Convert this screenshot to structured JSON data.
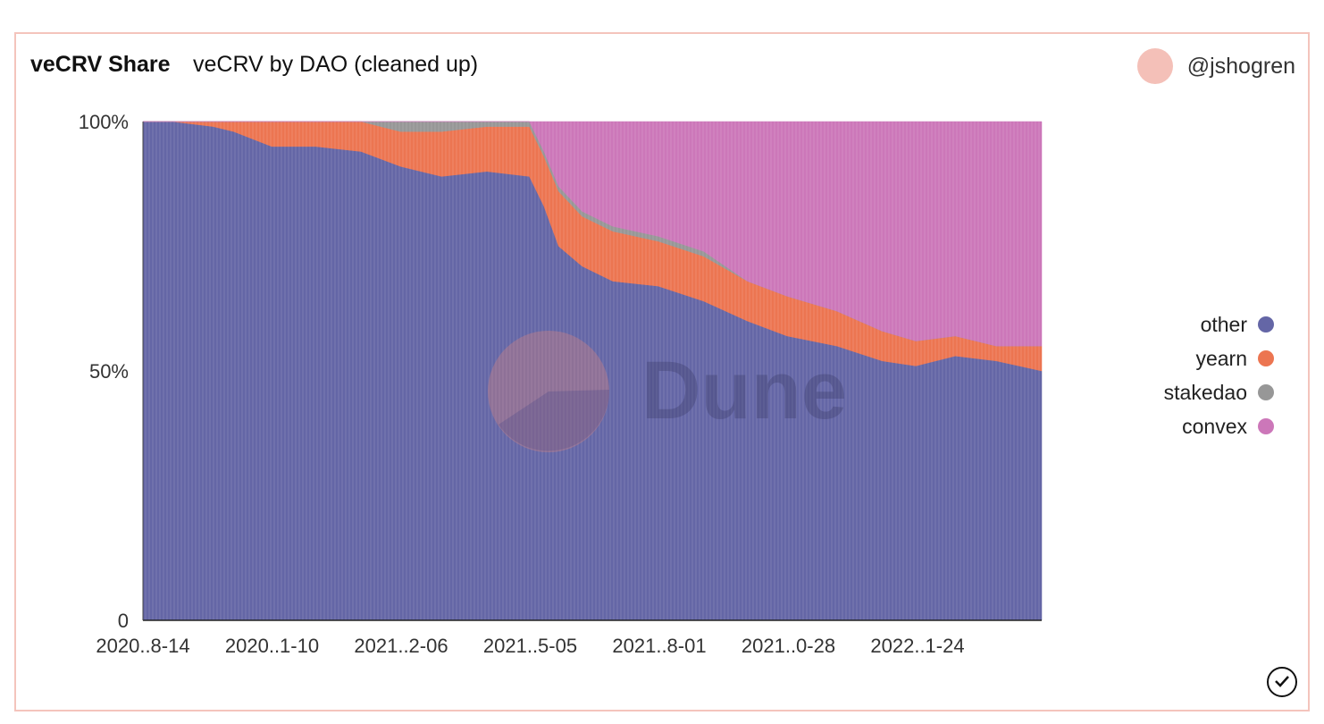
{
  "header": {
    "title": "veCRV Share",
    "subtitle": "veCRV by DAO (cleaned up)",
    "author": "@jshogren"
  },
  "watermark": "Dune",
  "colors": {
    "other": "#6466a6",
    "yearn": "#ec7551",
    "stakedao": "#979797",
    "convex": "#cc77b9",
    "border": "#f4c4bc",
    "avatar": "#f4c0b8"
  },
  "icons": {
    "avatar": "avatar-circle",
    "status": "check-circle-icon"
  },
  "chart_data": {
    "type": "area",
    "stacked": "percent",
    "grid": false,
    "legend_position": "right",
    "ylim": [
      0,
      100
    ],
    "y_ticks": [
      "0",
      "50%",
      "100%"
    ],
    "x_ticks": [
      "2020..8-14",
      "2020..1-10",
      "2021..2-06",
      "2021..5-05",
      "2021..8-01",
      "2021..0-28",
      "2022..1-24"
    ],
    "x": [
      "2020-08-14",
      "2020-09-03",
      "2020-10-01",
      "2020-10-15",
      "2020-11-10",
      "2020-12-10",
      "2021-01-10",
      "2021-02-06",
      "2021-03-06",
      "2021-04-06",
      "2021-05-05",
      "2021-05-15",
      "2021-05-25",
      "2021-06-10",
      "2021-07-01",
      "2021-08-01",
      "2021-09-01",
      "2021-10-01",
      "2021-10-28",
      "2021-12-01",
      "2022-01-01",
      "2022-01-24",
      "2022-02-20",
      "2022-03-20",
      "2022-04-20"
    ],
    "series": [
      {
        "name": "other",
        "values": [
          100,
          100,
          99,
          98,
          95,
          95,
          94,
          91,
          89,
          90,
          89,
          83,
          75,
          71,
          68,
          67,
          64,
          60,
          57,
          55,
          52,
          51,
          53,
          52,
          50
        ]
      },
      {
        "name": "yearn",
        "values": [
          0,
          0,
          1,
          2,
          5,
          5,
          6,
          7,
          9,
          9,
          10,
          10,
          11,
          10,
          10,
          9,
          9,
          8,
          8,
          7,
          6,
          5,
          4,
          3,
          5
        ]
      },
      {
        "name": "stakedao",
        "values": [
          0,
          0,
          0,
          0,
          0,
          0,
          0,
          2,
          2,
          1,
          1,
          1,
          1,
          1,
          1,
          1,
          1,
          0,
          0,
          0,
          0,
          0,
          0,
          0,
          0
        ]
      },
      {
        "name": "convex",
        "values": [
          0,
          0,
          0,
          0,
          0,
          0,
          0,
          0,
          0,
          0,
          0,
          6,
          13,
          18,
          21,
          23,
          26,
          32,
          35,
          38,
          42,
          44,
          43,
          45,
          45
        ]
      }
    ]
  }
}
